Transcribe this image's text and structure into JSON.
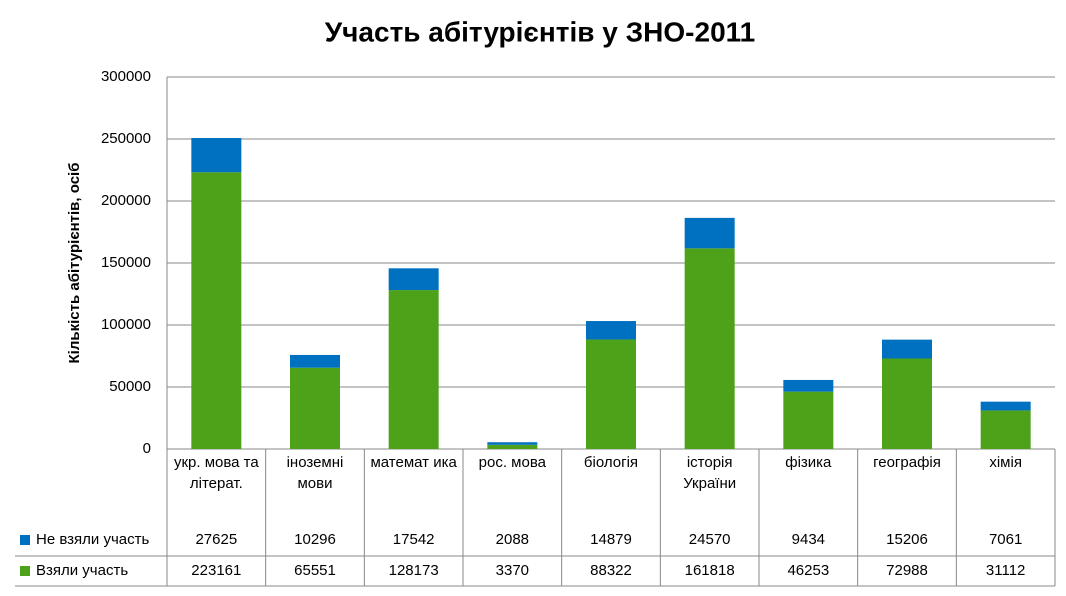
{
  "chart_data": {
    "type": "stacked_bar",
    "title": "Участь абітурієнтів у ЗНО-2011",
    "y_label": "Кількість абітурієнтів,  осіб",
    "categories": [
      "укр. мова та літерат.",
      "іноземні мови",
      "математ ика",
      "рос. мова",
      "біологія",
      "історія України",
      "фізика",
      "географія",
      "хімія"
    ],
    "series": [
      {
        "name": "Не взяли участь",
        "color": "#0070c0",
        "values": [
          27625,
          10296,
          17542,
          2088,
          14879,
          24570,
          9434,
          15206,
          7061
        ]
      },
      {
        "name": "Взяли участь",
        "color": "#4ea21a",
        "values": [
          223161,
          65551,
          128173,
          3370,
          88322,
          161818,
          46253,
          72988,
          31112
        ]
      }
    ],
    "ylim": [
      0,
      300000
    ],
    "yticks": [
      0,
      50000,
      100000,
      150000,
      200000,
      250000,
      300000
    ],
    "grid": true
  }
}
